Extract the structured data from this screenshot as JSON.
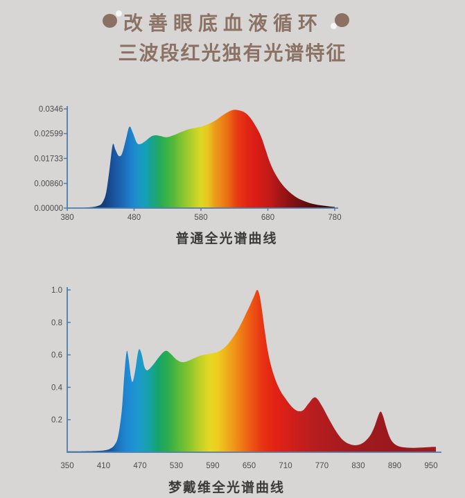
{
  "page": {
    "background": "#d7d6d4"
  },
  "header": {
    "title_line1": "改善眼底血液循环",
    "title_line2": "三波段红光独有光谱特征",
    "text_color": "#8b7265",
    "decoration": {
      "dot_color": "#8a7164",
      "highlight_dot_color": "#f7f6f4"
    }
  },
  "chart_data": [
    {
      "type": "area",
      "name": "ordinary-full-spectrum-curve",
      "caption": "普通全光谱曲线",
      "xlim": [
        380,
        780
      ],
      "ylim": [
        0,
        0.0346
      ],
      "x_tick_values": [
        380,
        480,
        580,
        680,
        780
      ],
      "x_tick_labels": [
        "380",
        "480",
        "580",
        "680",
        "780"
      ],
      "y_tick_values": [
        0.0346,
        0.02599,
        0.01733,
        0.0086,
        0
      ],
      "y_tick_labels": [
        "0.0346",
        "0.02599",
        "0.01733",
        "0.00860",
        "0.00000"
      ],
      "axis_color": "#4e7dab",
      "label_color": "#4c4c4c",
      "grid": false,
      "legend": false,
      "series": [
        {
          "name": "spectral-power",
          "points": [
            [
              380,
              0
            ],
            [
              400,
              0.0001
            ],
            [
              415,
              0.0003
            ],
            [
              425,
              0.0007
            ],
            [
              432,
              0.0017
            ],
            [
              438,
              0.0052
            ],
            [
              443,
              0.0131
            ],
            [
              448,
              0.0221
            ],
            [
              452,
              0.0204
            ],
            [
              457,
              0.0182
            ],
            [
              462,
              0.019
            ],
            [
              468,
              0.0242
            ],
            [
              473,
              0.0284
            ],
            [
              478,
              0.0263
            ],
            [
              484,
              0.0228
            ],
            [
              489,
              0.0223
            ],
            [
              496,
              0.0232
            ],
            [
              505,
              0.0249
            ],
            [
              512,
              0.0254
            ],
            [
              520,
              0.0251
            ],
            [
              528,
              0.0247
            ],
            [
              538,
              0.0253
            ],
            [
              550,
              0.0265
            ],
            [
              562,
              0.0275
            ],
            [
              572,
              0.028
            ],
            [
              582,
              0.0285
            ],
            [
              592,
              0.0294
            ],
            [
              602,
              0.0306
            ],
            [
              612,
              0.0323
            ],
            [
              622,
              0.0337
            ],
            [
              630,
              0.0343
            ],
            [
              640,
              0.0339
            ],
            [
              648,
              0.0329
            ],
            [
              656,
              0.0308
            ],
            [
              664,
              0.0277
            ],
            [
              670,
              0.0249
            ],
            [
              676,
              0.0208
            ],
            [
              682,
              0.0166
            ],
            [
              688,
              0.0133
            ],
            [
              695,
              0.0104
            ],
            [
              702,
              0.0081
            ],
            [
              710,
              0.0061
            ],
            [
              718,
              0.0045
            ],
            [
              726,
              0.0033
            ],
            [
              735,
              0.0024
            ],
            [
              745,
              0.0016
            ],
            [
              755,
              0.0011
            ],
            [
              765,
              0.0008
            ],
            [
              775,
              0.0005
            ],
            [
              780,
              0.0004
            ]
          ]
        }
      ],
      "gradient_stops": [
        [
          380,
          "#0f2752"
        ],
        [
          420,
          "#14356b"
        ],
        [
          437,
          "#173f7d"
        ],
        [
          450,
          "#1a55a0"
        ],
        [
          465,
          "#1c6db8"
        ],
        [
          476,
          "#1e83cd"
        ],
        [
          490,
          "#179ac2"
        ],
        [
          497,
          "#15a0b8"
        ],
        [
          505,
          "#17a392"
        ],
        [
          518,
          "#23aa5e"
        ],
        [
          530,
          "#3db342"
        ],
        [
          539,
          "#55b83a"
        ],
        [
          550,
          "#7fc231"
        ],
        [
          559,
          "#9aca2d"
        ],
        [
          570,
          "#c0d129"
        ],
        [
          580,
          "#dcd824"
        ],
        [
          590,
          "#e9c81f"
        ],
        [
          601,
          "#eb9b19"
        ],
        [
          611,
          "#ec8316"
        ],
        [
          621,
          "#ea6b14"
        ],
        [
          628,
          "#e94f13"
        ],
        [
          635,
          "#e73a13"
        ],
        [
          650,
          "#e02414"
        ],
        [
          663,
          "#d91d15"
        ],
        [
          675,
          "#cb1b16"
        ],
        [
          684,
          "#c01a18"
        ],
        [
          695,
          "#a81618"
        ],
        [
          704,
          "#9a1415"
        ],
        [
          715,
          "#851113"
        ],
        [
          725,
          "#761012"
        ],
        [
          735,
          "#640d10"
        ],
        [
          746,
          "#540b0e"
        ],
        [
          756,
          "#44090b"
        ],
        [
          766,
          "#38080a"
        ],
        [
          780,
          "#26050a"
        ]
      ]
    },
    {
      "type": "area",
      "name": "mengdaiwei-full-spectrum-curve",
      "caption": "梦戴维全光谱曲线",
      "xlim": [
        350,
        950
      ],
      "ylim": [
        0,
        1.0
      ],
      "x_tick_values": [
        350,
        410,
        470,
        530,
        590,
        650,
        710,
        770,
        830,
        890,
        950
      ],
      "x_tick_labels": [
        "350",
        "410",
        "470",
        "530",
        "590",
        "650",
        "710",
        "770",
        "830",
        "890",
        "950"
      ],
      "y_tick_values": [
        1.0,
        0.8,
        0.6,
        0.4,
        0.2
      ],
      "y_tick_labels": [
        "1.0",
        "0.8",
        "0.6",
        "0.4",
        "0.2"
      ],
      "axis_color": "#4e7dab",
      "label_color": "#4c4c4c",
      "grid": false,
      "legend": false,
      "series": [
        {
          "name": "spectral-power",
          "points": [
            [
              350,
              0.005
            ],
            [
              380,
              0.006
            ],
            [
              400,
              0.008
            ],
            [
              412,
              0.012
            ],
            [
              420,
              0.02
            ],
            [
              428,
              0.045
            ],
            [
              434,
              0.1
            ],
            [
              440,
              0.26
            ],
            [
              444,
              0.47
            ],
            [
              448,
              0.62
            ],
            [
              451,
              0.58
            ],
            [
              455,
              0.465
            ],
            [
              458,
              0.435
            ],
            [
              462,
              0.5
            ],
            [
              466,
              0.6
            ],
            [
              469,
              0.635
            ],
            [
              473,
              0.6
            ],
            [
              477,
              0.53
            ],
            [
              481,
              0.505
            ],
            [
              486,
              0.515
            ],
            [
              493,
              0.545
            ],
            [
              501,
              0.585
            ],
            [
              508,
              0.615
            ],
            [
              514,
              0.625
            ],
            [
              521,
              0.605
            ],
            [
              529,
              0.575
            ],
            [
              536,
              0.558
            ],
            [
              543,
              0.555
            ],
            [
              551,
              0.565
            ],
            [
              560,
              0.58
            ],
            [
              570,
              0.595
            ],
            [
              580,
              0.603
            ],
            [
              590,
              0.61
            ],
            [
              598,
              0.618
            ],
            [
              606,
              0.635
            ],
            [
              614,
              0.662
            ],
            [
              622,
              0.7
            ],
            [
              630,
              0.745
            ],
            [
              638,
              0.8
            ],
            [
              645,
              0.855
            ],
            [
              652,
              0.91
            ],
            [
              658,
              0.96
            ],
            [
              663,
              1.0
            ],
            [
              667,
              0.97
            ],
            [
              671,
              0.88
            ],
            [
              676,
              0.74
            ],
            [
              681,
              0.62
            ],
            [
              687,
              0.52
            ],
            [
              694,
              0.44
            ],
            [
              702,
              0.375
            ],
            [
              710,
              0.33
            ],
            [
              718,
              0.29
            ],
            [
              726,
              0.262
            ],
            [
              733,
              0.252
            ],
            [
              740,
              0.262
            ],
            [
              748,
              0.3
            ],
            [
              756,
              0.335
            ],
            [
              762,
              0.33
            ],
            [
              770,
              0.285
            ],
            [
              778,
              0.23
            ],
            [
              786,
              0.175
            ],
            [
              794,
              0.125
            ],
            [
              802,
              0.085
            ],
            [
              810,
              0.06
            ],
            [
              818,
              0.047
            ],
            [
              826,
              0.043
            ],
            [
              834,
              0.05
            ],
            [
              842,
              0.07
            ],
            [
              850,
              0.105
            ],
            [
              857,
              0.16
            ],
            [
              863,
              0.225
            ],
            [
              867,
              0.25
            ],
            [
              871,
              0.22
            ],
            [
              876,
              0.155
            ],
            [
              881,
              0.1
            ],
            [
              886,
              0.065
            ],
            [
              892,
              0.045
            ],
            [
              900,
              0.033
            ],
            [
              910,
              0.028
            ],
            [
              920,
              0.027
            ],
            [
              930,
              0.028
            ],
            [
              940,
              0.03
            ],
            [
              950,
              0.032
            ],
            [
              958,
              0.033
            ]
          ]
        }
      ],
      "gradient_stops": [
        [
          350,
          "#10265a"
        ],
        [
          420,
          "#16549d"
        ],
        [
          440,
          "#1c7fc8"
        ],
        [
          455,
          "#1f8ed6"
        ],
        [
          470,
          "#1d9bc9"
        ],
        [
          485,
          "#16a3a6"
        ],
        [
          500,
          "#15a46c"
        ],
        [
          515,
          "#2aab4d"
        ],
        [
          532,
          "#55b83a"
        ],
        [
          550,
          "#84c32e"
        ],
        [
          568,
          "#bdd029"
        ],
        [
          585,
          "#e4d822"
        ],
        [
          598,
          "#eecd1f"
        ],
        [
          612,
          "#eeb01b"
        ],
        [
          628,
          "#ef9018"
        ],
        [
          642,
          "#ee7014"
        ],
        [
          655,
          "#ec5413"
        ],
        [
          668,
          "#e83a12"
        ],
        [
          682,
          "#e52a12"
        ],
        [
          695,
          "#e22115"
        ],
        [
          710,
          "#d92019"
        ],
        [
          730,
          "#c81e1c"
        ],
        [
          760,
          "#b51d1f"
        ],
        [
          800,
          "#a81b1e"
        ],
        [
          850,
          "#9d1a1d"
        ],
        [
          900,
          "#99181c"
        ],
        [
          958,
          "#a01b1f"
        ]
      ]
    }
  ]
}
